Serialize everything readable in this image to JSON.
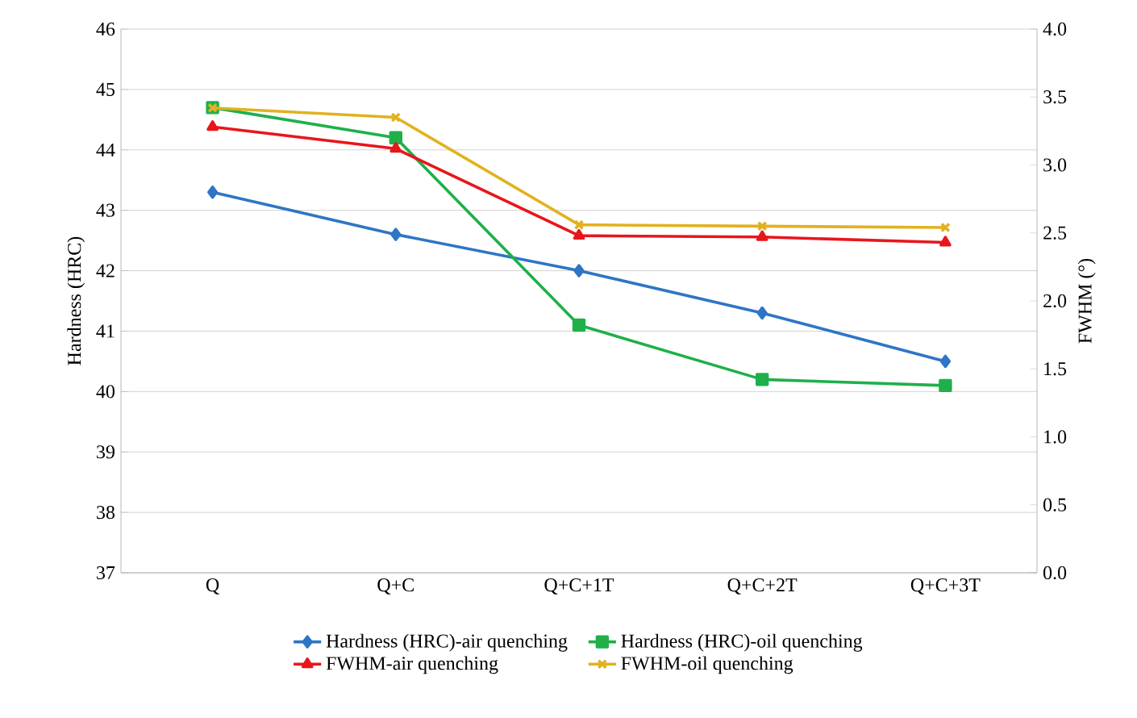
{
  "chart_data": {
    "type": "line",
    "ylabel": "Hardness (HRC)",
    "y2label": "FWHM (°)",
    "categories": [
      "Q",
      "Q+C",
      "Q+C+1T",
      "Q+C+2T",
      "Q+C+3T"
    ],
    "series": [
      {
        "name": "Hardness (HRC)-air quenching",
        "color": "#2e75c6",
        "marker": "diamond",
        "values": [
          43.3,
          42.6,
          42.0,
          41.3,
          40.5
        ]
      },
      {
        "name": "Hardness (HRC)-oil quenching",
        "color": "#1fb04a",
        "marker": "square",
        "values": [
          44.7,
          44.2,
          41.1,
          40.2,
          40.1
        ]
      },
      {
        "name": "FWHM-air quenching",
        "color": "#e8161b",
        "marker": "triangle",
        "axis": "y2",
        "values": [
          3.28,
          3.12,
          2.48,
          2.47,
          2.43
        ]
      },
      {
        "name": "FWHM-oil quenching",
        "color": "#e1b21f",
        "marker": "cross",
        "axis": "y2",
        "values": [
          3.42,
          3.35,
          2.56,
          2.55,
          2.54
        ]
      }
    ],
    "ylim": [
      37,
      46
    ],
    "yticks": [
      37,
      38,
      39,
      40,
      41,
      42,
      43,
      44,
      45,
      46
    ],
    "y2lim": [
      0,
      4
    ],
    "y2ticks": [
      {
        "value": 0,
        "label": "0.0"
      },
      {
        "value": 0.5,
        "label": "0.5"
      },
      {
        "value": 1,
        "label": "1.0"
      },
      {
        "value": 1.5,
        "label": "1.5"
      },
      {
        "value": 2,
        "label": "2.0"
      },
      {
        "value": 2.5,
        "label": "2.5"
      },
      {
        "value": 3,
        "label": "3.0"
      },
      {
        "value": 3.5,
        "label": "3.5"
      },
      {
        "value": 4,
        "label": "4.0"
      }
    ],
    "grid": "y",
    "legend": "bottom"
  }
}
